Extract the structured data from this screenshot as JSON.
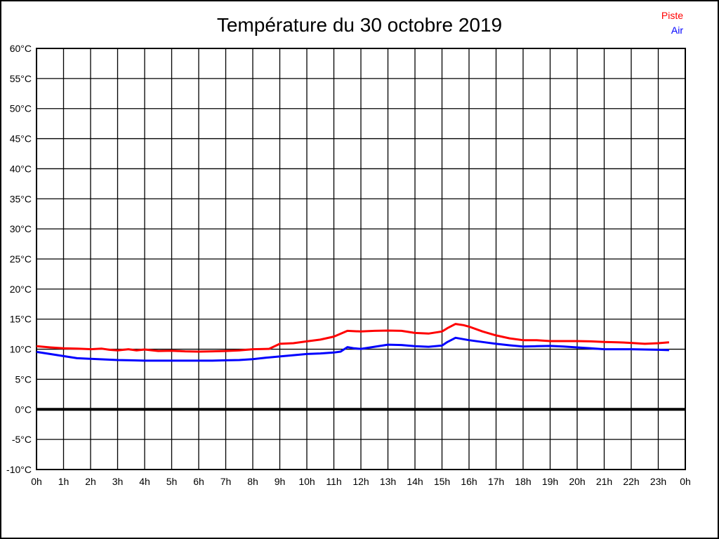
{
  "title": "Température du 30 octobre 2019",
  "legend": [
    {
      "label": "Piste",
      "color": "#ff0000"
    },
    {
      "label": "Air",
      "color": "#0000ff"
    }
  ],
  "chart_data": {
    "type": "line",
    "title": "Température du 30 octobre 2019",
    "xlabel": "",
    "ylabel": "",
    "x_min": 0,
    "x_max": 24,
    "y_min": -10,
    "y_max": 60,
    "y_step": 5,
    "grid": true,
    "zero_line_value": 0,
    "axis_color": "#000000",
    "legend_position": "top-right",
    "x_ticks": [
      [
        0,
        "0h"
      ],
      [
        1,
        "1h"
      ],
      [
        2,
        "2h"
      ],
      [
        3,
        "3h"
      ],
      [
        4,
        "4h"
      ],
      [
        5,
        "5h"
      ],
      [
        6,
        "6h"
      ],
      [
        7,
        "7h"
      ],
      [
        8,
        "8h"
      ],
      [
        9,
        "9h"
      ],
      [
        10,
        "10h"
      ],
      [
        11,
        "11h"
      ],
      [
        12,
        "12h"
      ],
      [
        13,
        "13h"
      ],
      [
        14,
        "14h"
      ],
      [
        15,
        "15h"
      ],
      [
        16,
        "16h"
      ],
      [
        17,
        "17h"
      ],
      [
        18,
        "18h"
      ],
      [
        19,
        "19h"
      ],
      [
        20,
        "20h"
      ],
      [
        21,
        "21h"
      ],
      [
        22,
        "22h"
      ],
      [
        23,
        "23h"
      ],
      [
        24,
        "0h"
      ]
    ],
    "y_ticks": [
      [
        60,
        "60°C"
      ],
      [
        55,
        "55°C"
      ],
      [
        50,
        "50°C"
      ],
      [
        45,
        "45°C"
      ],
      [
        40,
        "40°C"
      ],
      [
        35,
        "35°C"
      ],
      [
        30,
        "30°C"
      ],
      [
        25,
        "25°C"
      ],
      [
        20,
        "20°C"
      ],
      [
        15,
        "15°C"
      ],
      [
        10,
        "10°C"
      ],
      [
        5,
        "5°C"
      ],
      [
        0,
        "0°C"
      ],
      [
        -5,
        "-5°C"
      ],
      [
        -10,
        "-10°C"
      ]
    ],
    "series": [
      {
        "name": "Piste",
        "color": "#ff0000",
        "points": [
          [
            0,
            10.5
          ],
          [
            0.5,
            10.3
          ],
          [
            1,
            10.15
          ],
          [
            1.5,
            10.1
          ],
          [
            2,
            10.0
          ],
          [
            2.4,
            10.1
          ],
          [
            2.7,
            9.9
          ],
          [
            3,
            9.8
          ],
          [
            3.4,
            10.0
          ],
          [
            3.7,
            9.8
          ],
          [
            4,
            9.95
          ],
          [
            4.5,
            9.7
          ],
          [
            5,
            9.75
          ],
          [
            5.5,
            9.65
          ],
          [
            6,
            9.6
          ],
          [
            6.5,
            9.65
          ],
          [
            7,
            9.7
          ],
          [
            7.5,
            9.8
          ],
          [
            8,
            10.0
          ],
          [
            8.6,
            10.05
          ],
          [
            9,
            10.9
          ],
          [
            9.5,
            11.0
          ],
          [
            10,
            11.3
          ],
          [
            10.5,
            11.6
          ],
          [
            11,
            12.1
          ],
          [
            11.5,
            13.05
          ],
          [
            12,
            12.95
          ],
          [
            12.5,
            13.05
          ],
          [
            13,
            13.1
          ],
          [
            13.5,
            13.05
          ],
          [
            14,
            12.7
          ],
          [
            14.5,
            12.6
          ],
          [
            15,
            12.95
          ],
          [
            15.2,
            13.5
          ],
          [
            15.5,
            14.2
          ],
          [
            15.8,
            14.0
          ],
          [
            16,
            13.75
          ],
          [
            16.5,
            12.95
          ],
          [
            17,
            12.3
          ],
          [
            17.5,
            11.8
          ],
          [
            18,
            11.5
          ],
          [
            18.5,
            11.5
          ],
          [
            19,
            11.35
          ],
          [
            19.5,
            11.35
          ],
          [
            20,
            11.35
          ],
          [
            20.5,
            11.3
          ],
          [
            21,
            11.2
          ],
          [
            21.5,
            11.15
          ],
          [
            22,
            11.05
          ],
          [
            22.5,
            10.9
          ],
          [
            23,
            11.0
          ],
          [
            23.4,
            11.15
          ]
        ]
      },
      {
        "name": "Air",
        "color": "#0000ff",
        "points": [
          [
            0,
            9.55
          ],
          [
            0.5,
            9.2
          ],
          [
            1,
            8.85
          ],
          [
            1.5,
            8.5
          ],
          [
            2,
            8.4
          ],
          [
            2.5,
            8.3
          ],
          [
            3,
            8.2
          ],
          [
            3.5,
            8.15
          ],
          [
            4,
            8.1
          ],
          [
            5,
            8.1
          ],
          [
            6,
            8.1
          ],
          [
            6.5,
            8.1
          ],
          [
            7,
            8.15
          ],
          [
            7.5,
            8.2
          ],
          [
            8,
            8.35
          ],
          [
            8.5,
            8.6
          ],
          [
            9,
            8.8
          ],
          [
            9.5,
            9.0
          ],
          [
            10,
            9.2
          ],
          [
            10.5,
            9.3
          ],
          [
            11,
            9.45
          ],
          [
            11.25,
            9.6
          ],
          [
            11.5,
            10.35
          ],
          [
            11.75,
            10.15
          ],
          [
            12,
            10.05
          ],
          [
            12.5,
            10.4
          ],
          [
            13,
            10.75
          ],
          [
            13.5,
            10.7
          ],
          [
            14,
            10.5
          ],
          [
            14.5,
            10.4
          ],
          [
            15,
            10.6
          ],
          [
            15.2,
            11.2
          ],
          [
            15.5,
            11.9
          ],
          [
            16,
            11.5
          ],
          [
            16.5,
            11.2
          ],
          [
            17,
            10.9
          ],
          [
            17.5,
            10.65
          ],
          [
            18,
            10.45
          ],
          [
            18.5,
            10.5
          ],
          [
            19,
            10.55
          ],
          [
            19.5,
            10.45
          ],
          [
            20,
            10.3
          ],
          [
            20.5,
            10.15
          ],
          [
            21,
            10.0
          ],
          [
            21.5,
            10.0
          ],
          [
            22,
            10.0
          ],
          [
            22.5,
            9.95
          ],
          [
            23,
            9.9
          ],
          [
            23.4,
            9.85
          ]
        ]
      }
    ]
  }
}
